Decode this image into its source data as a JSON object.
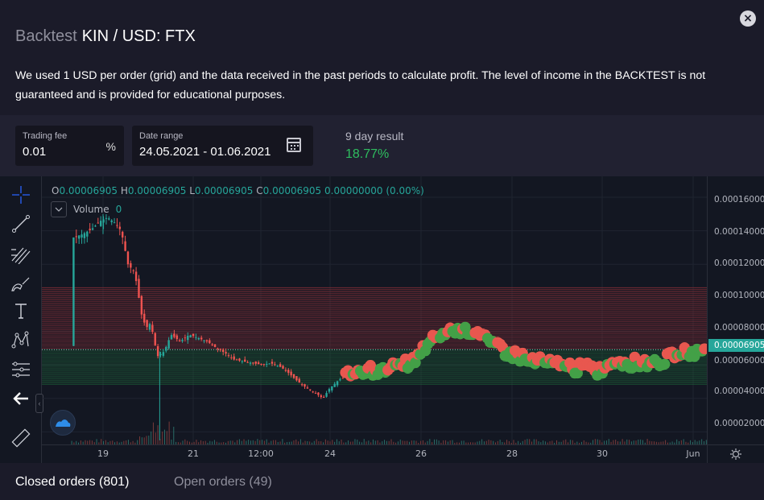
{
  "header": {
    "title_prefix": "Backtest",
    "title_pair": "KIN / USD: FTX",
    "description": "We used 1 USD per order (grid) and the data received in the past periods to calculate profit. The level of income in the BACKTEST is not guaranteed and is provided for educational purposes.",
    "close_icon": "close-icon"
  },
  "controls": {
    "trading_fee": {
      "label": "Trading fee",
      "value": "0.01",
      "unit": "%"
    },
    "date_range": {
      "label": "Date range",
      "value": "24.05.2021 - 01.06.2021",
      "icon": "calendar-icon"
    },
    "result": {
      "label": "9 day result",
      "value": "18.77%",
      "color": "#2fbd5f"
    }
  },
  "chart_legend": {
    "o_key": "O",
    "o_val": "0.00006905",
    "h_key": "H",
    "h_val": "0.00006905",
    "l_key": "L",
    "l_val": "0.00006905",
    "c_key": "C",
    "c_val": "0.00006905",
    "change": "0.00000000 (0.00%)",
    "volume_label": "Volume",
    "volume_value": "0"
  },
  "toolbar": {
    "tools": [
      "crosshair-icon",
      "trend-line-icon",
      "fib-icon",
      "brush-icon",
      "text-icon",
      "pattern-icon",
      "prediction-icon",
      "back-arrow-icon",
      "ruler-icon"
    ]
  },
  "chart_data": {
    "type": "candlestick",
    "y_ticks": [
      "0.00016000",
      "0.00014000",
      "0.00012000",
      "0.00010000",
      "0.00008000",
      "0.00006000",
      "0.00004000",
      "0.00002000"
    ],
    "x_ticks": [
      "19",
      "21",
      "12:00",
      "24",
      "26",
      "28",
      "30",
      "Jun"
    ],
    "current_price": "0.00006905",
    "current_price_value": 6.905e-05,
    "ylim": [
      1.25e-05,
      0.0001725
    ],
    "grid_sell_range": [
      6.905e-05,
      0.000106
    ],
    "grid_buy_range": [
      4.85e-05,
      6.905e-05
    ],
    "grid_lines_count": 49,
    "colors": {
      "up": "#26a69a",
      "down": "#ef5350",
      "buy": "#43a047",
      "sell": "#e8574f",
      "grid_sell": "#7a2c34",
      "grid_buy": "#1c5a36"
    },
    "price_path": [
      [
        18.35,
        0.000136
      ],
      [
        18.55,
        0.000138
      ],
      [
        18.75,
        0.000141
      ],
      [
        18.95,
        0.000146
      ],
      [
        19.1,
        0.000148
      ],
      [
        19.25,
        0.000145
      ],
      [
        19.4,
        0.00014
      ],
      [
        19.55,
        0.00012
      ],
      [
        19.7,
        0.000115
      ],
      [
        19.85,
        9e-05
      ],
      [
        19.95,
        8.2e-05
      ],
      [
        20.05,
        8.5e-05
      ],
      [
        20.2,
        6.5e-05
      ],
      [
        20.35,
        6.8e-05
      ],
      [
        20.5,
        7.8e-05
      ],
      [
        20.7,
        7.4e-05
      ],
      [
        20.9,
        7.8e-05
      ],
      [
        21.1,
        7.6e-05
      ],
      [
        21.3,
        7.4e-05
      ],
      [
        21.5,
        7e-05
      ],
      [
        21.7,
        6.7e-05
      ],
      [
        21.9,
        6.3e-05
      ],
      [
        22.1,
        6.2e-05
      ],
      [
        22.3,
        6.1e-05
      ],
      [
        22.5,
        6e-05
      ],
      [
        22.7,
        6.1e-05
      ],
      [
        22.9,
        5.9e-05
      ],
      [
        23.1,
        5.5e-05
      ],
      [
        23.3,
        5e-05
      ],
      [
        23.5,
        4.6e-05
      ],
      [
        23.7,
        4.3e-05
      ],
      [
        23.85,
        4e-05
      ],
      [
        24.0,
        4.6e-05
      ],
      [
        24.2,
        5.1e-05
      ],
      [
        24.45,
        5.4e-05
      ],
      [
        24.7,
        5.6e-05
      ],
      [
        25.0,
        5.7e-05
      ],
      [
        25.3,
        5.8e-05
      ],
      [
        25.6,
        6e-05
      ],
      [
        25.9,
        6.2e-05
      ],
      [
        26.1,
        7.1e-05
      ],
      [
        26.3,
        7.5e-05
      ],
      [
        26.6,
        8e-05
      ],
      [
        26.9,
        8.2e-05
      ],
      [
        27.1,
        8.1e-05
      ],
      [
        27.3,
        7.8e-05
      ],
      [
        27.6,
        7.3e-05
      ],
      [
        27.9,
        6.8e-05
      ],
      [
        28.2,
        6.5e-05
      ],
      [
        28.5,
        6.2e-05
      ],
      [
        28.8,
        6.1e-05
      ],
      [
        29.1,
        6e-05
      ],
      [
        29.4,
        5.8e-05
      ],
      [
        29.7,
        5.8e-05
      ],
      [
        29.9,
        5.6e-05
      ],
      [
        30.2,
        6.1e-05
      ],
      [
        30.5,
        6.2e-05
      ],
      [
        30.8,
        6.1e-05
      ],
      [
        31.1,
        6.2e-05
      ],
      [
        31.4,
        6.3e-05
      ],
      [
        31.7,
        6.6e-05
      ],
      [
        32.0,
        6.8e-05
      ],
      [
        32.3,
        7e-05
      ]
    ]
  },
  "tabs": {
    "closed_orders": "Closed orders (801)",
    "open_orders": "Open orders (49)"
  }
}
